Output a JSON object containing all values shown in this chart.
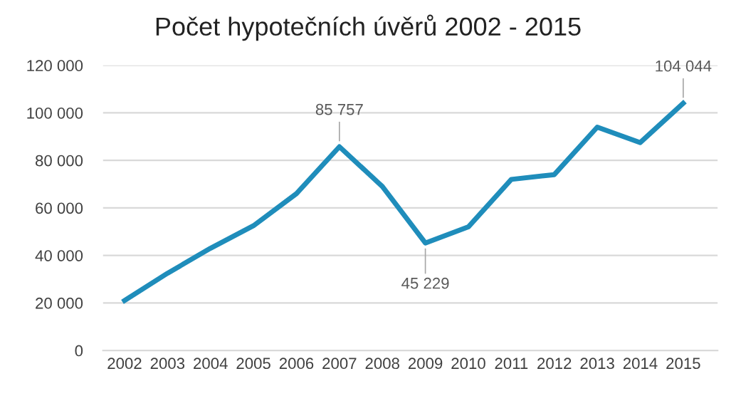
{
  "chart_data": {
    "type": "line",
    "title": "Počet hypotečních úvěrů 2002 - 2015",
    "categories": [
      "2002",
      "2003",
      "2004",
      "2005",
      "2006",
      "2007",
      "2008",
      "2009",
      "2010",
      "2011",
      "2012",
      "2013",
      "2014",
      "2015"
    ],
    "series": [
      {
        "color": "#1f8dbb",
        "values": [
          21000,
          32500,
          43000,
          52500,
          66000,
          85757,
          69000,
          45229,
          52000,
          72000,
          74000,
          94000,
          87500,
          104044
        ]
      }
    ],
    "ylim": [
      0,
      120000
    ],
    "yticks": [
      {
        "value": 0,
        "label": "0"
      },
      {
        "value": 20000,
        "label": "20 000"
      },
      {
        "value": 40000,
        "label": "40 000"
      },
      {
        "value": 60000,
        "label": "60 000"
      },
      {
        "value": 80000,
        "label": "80 000"
      },
      {
        "value": 100000,
        "label": "100 000"
      },
      {
        "value": 120000,
        "label": "120 000"
      }
    ],
    "grid": "y",
    "legend": false,
    "marker": "none",
    "line_style": "solid",
    "annotations": [
      {
        "text": "85 757",
        "x": "2007",
        "y": 85757
      },
      {
        "text": "45 229",
        "x": "2009",
        "y": 45229
      },
      {
        "text": "104 044",
        "x": "2015",
        "y": 104044
      }
    ]
  }
}
